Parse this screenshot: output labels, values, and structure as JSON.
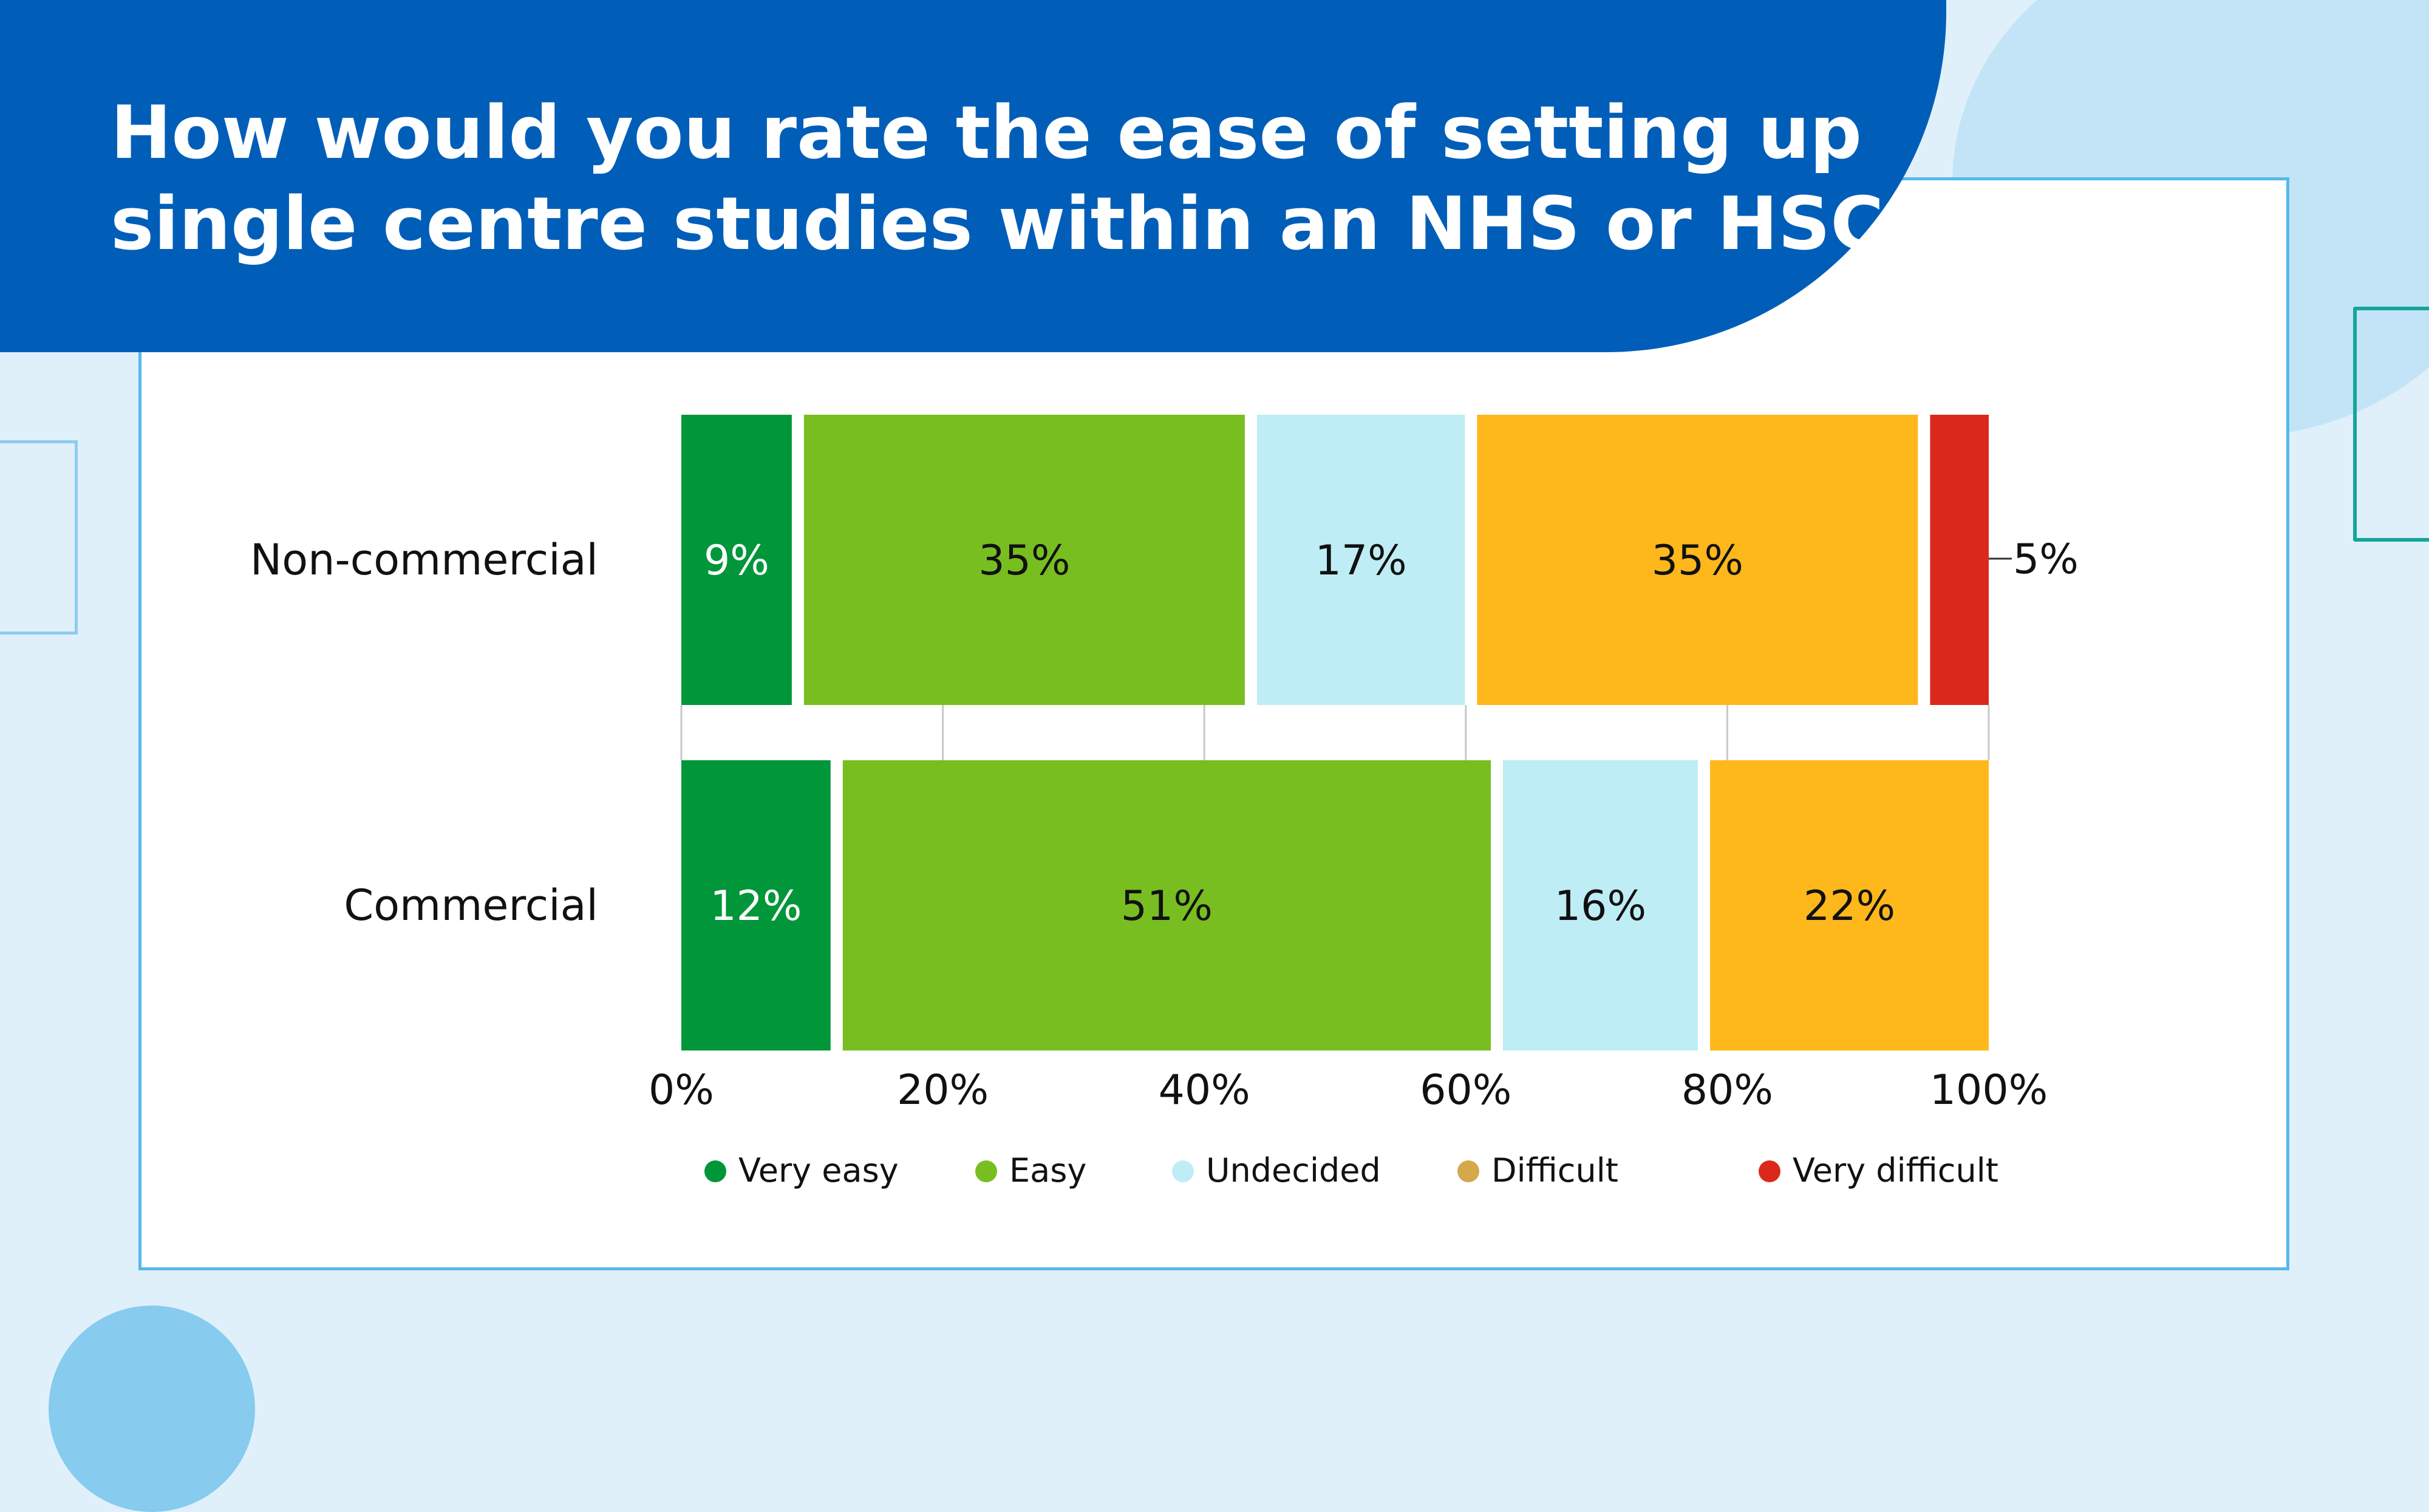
{
  "title": {
    "line1": "How would you rate the ease of setting up",
    "line2": "single centre studies within an NHS or HSC site?"
  },
  "colors": {
    "banner": "#005eb8",
    "card_border": "#57b9e9",
    "background": "#e0f0fb",
    "very_easy": "#009639",
    "easy": "#78be20",
    "undecided": "#bfedf5",
    "difficult": "#ffb81c",
    "very_difficult": "#da291c"
  },
  "chart_data": {
    "type": "bar",
    "orientation": "horizontal",
    "stacked": true,
    "categories": [
      "Non-commercial",
      "Commercial"
    ],
    "series": [
      {
        "name": "Very easy",
        "color": "#009639",
        "values": [
          9,
          12
        ],
        "labels": [
          "9%",
          "12%"
        ]
      },
      {
        "name": "Easy",
        "color": "#78be20",
        "values": [
          35,
          51
        ],
        "labels": [
          "35%",
          "51%"
        ]
      },
      {
        "name": "Undecided",
        "color": "#bfedf5",
        "values": [
          17,
          16
        ],
        "labels": [
          "17%",
          "16%"
        ]
      },
      {
        "name": "Difficult",
        "color": "#ffb81c",
        "values": [
          35,
          22
        ],
        "labels": [
          "35%",
          "22%"
        ]
      },
      {
        "name": "Very difficult",
        "color": "#da291c",
        "values": [
          5,
          0
        ],
        "labels": [
          "5%",
          ""
        ]
      }
    ],
    "xlim": [
      0,
      100
    ],
    "x_ticks": [
      "0%",
      "20%",
      "40%",
      "60%",
      "80%",
      "100%"
    ],
    "legend_position": "bottom",
    "legend_marker_colors": [
      "#009639",
      "#78be20",
      "#bfedf5",
      "#d4a84b",
      "#da291c"
    ]
  }
}
